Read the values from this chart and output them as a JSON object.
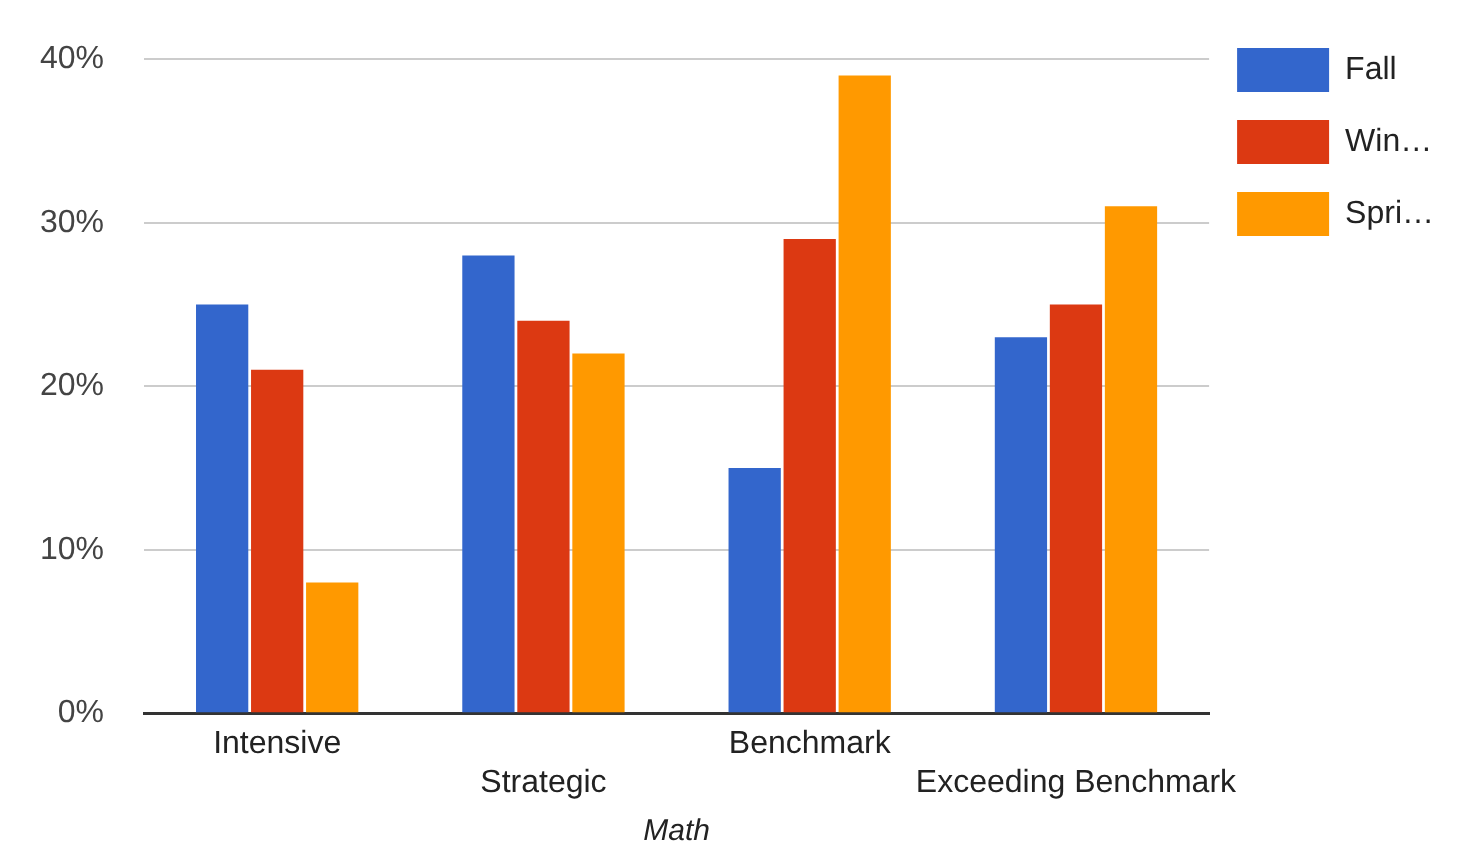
{
  "chart_data": {
    "type": "bar",
    "xlabel": "Math",
    "categories": [
      "Intensive",
      "Strategic",
      "Benchmark",
      "Exceeding Benchmark"
    ],
    "series": [
      {
        "name": "Fall",
        "color": "#3366cc",
        "values": [
          25,
          28,
          15,
          23
        ]
      },
      {
        "name": "Win…",
        "color": "#dc3912",
        "values": [
          21,
          24,
          29,
          25
        ]
      },
      {
        "name": "Spri…",
        "color": "#ff9900",
        "values": [
          8,
          22,
          39,
          31
        ]
      }
    ],
    "ylim": [
      0,
      40
    ],
    "yticks": [
      {
        "value": 0,
        "label": "0%"
      },
      {
        "value": 10,
        "label": "10%"
      },
      {
        "value": 20,
        "label": "20%"
      },
      {
        "value": 30,
        "label": "30%"
      },
      {
        "value": 40,
        "label": "40%"
      }
    ],
    "grid": "y",
    "legend": "top right"
  }
}
